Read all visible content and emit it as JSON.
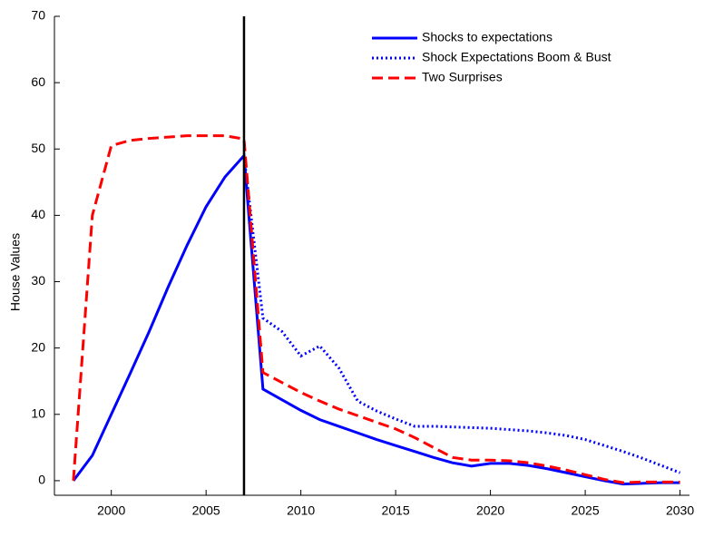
{
  "chart_data": {
    "type": "line",
    "y_label": "House Values",
    "x": [
      1998,
      1999,
      2000,
      2001,
      2002,
      2003,
      2004,
      2005,
      2006,
      2007,
      2008,
      2009,
      2010,
      2011,
      2012,
      2013,
      2014,
      2015,
      2016,
      2017,
      2018,
      2019,
      2020,
      2021,
      2022,
      2023,
      2024,
      2025,
      2026,
      2027,
      2028,
      2029,
      2030
    ],
    "series": [
      {
        "name": "Shocks to expectations",
        "color": "#0000ff",
        "dash": "solid",
        "values": [
          0,
          3.8,
          10,
          16.2,
          22.5,
          29.2,
          35.5,
          41.3,
          45.8,
          49,
          13.8,
          12.2,
          10.6,
          9.2,
          8.2,
          7.2,
          6.2,
          5.3,
          4.4,
          3.5,
          2.7,
          2.2,
          2.6,
          2.6,
          2.3,
          1.8,
          1.2,
          0.6,
          0,
          -0.5,
          -0.4,
          -0.3,
          -0.3
        ]
      },
      {
        "name": "Shock Expectations Boom & Bust",
        "color": "#0000ff",
        "dash": "dotted",
        "values": [
          null,
          null,
          null,
          null,
          null,
          null,
          null,
          null,
          null,
          49,
          24.5,
          22.5,
          18.8,
          20.3,
          17,
          12,
          10.5,
          9.3,
          8.2,
          8.2,
          8.1,
          8,
          7.9,
          7.7,
          7.5,
          7.2,
          6.8,
          6.2,
          5.3,
          4.4,
          3.4,
          2.3,
          1.2
        ]
      },
      {
        "name": "Two Surprises",
        "color": "#ff0000",
        "dash": "dashed",
        "values": [
          0,
          40,
          50.5,
          51.3,
          51.6,
          51.8,
          52,
          52,
          52,
          51.5,
          16.3,
          14.8,
          13.3,
          12,
          10.8,
          9.8,
          8.8,
          7.8,
          6.5,
          5,
          3.5,
          3.1,
          3.1,
          3,
          2.7,
          2.2,
          1.6,
          0.9,
          0.2,
          -0.3,
          -0.2,
          -0.2,
          -0.2
        ]
      }
    ],
    "vertical_line": 2007,
    "xlim": [
      1997,
      2030.5
    ],
    "ylim": [
      -2.2,
      70
    ],
    "xticks": [
      2000,
      2005,
      2010,
      2015,
      2020,
      2025,
      2030
    ],
    "yticks": [
      0,
      10,
      20,
      30,
      40,
      50,
      60,
      70
    ],
    "legend": "upper right",
    "grid": false
  }
}
